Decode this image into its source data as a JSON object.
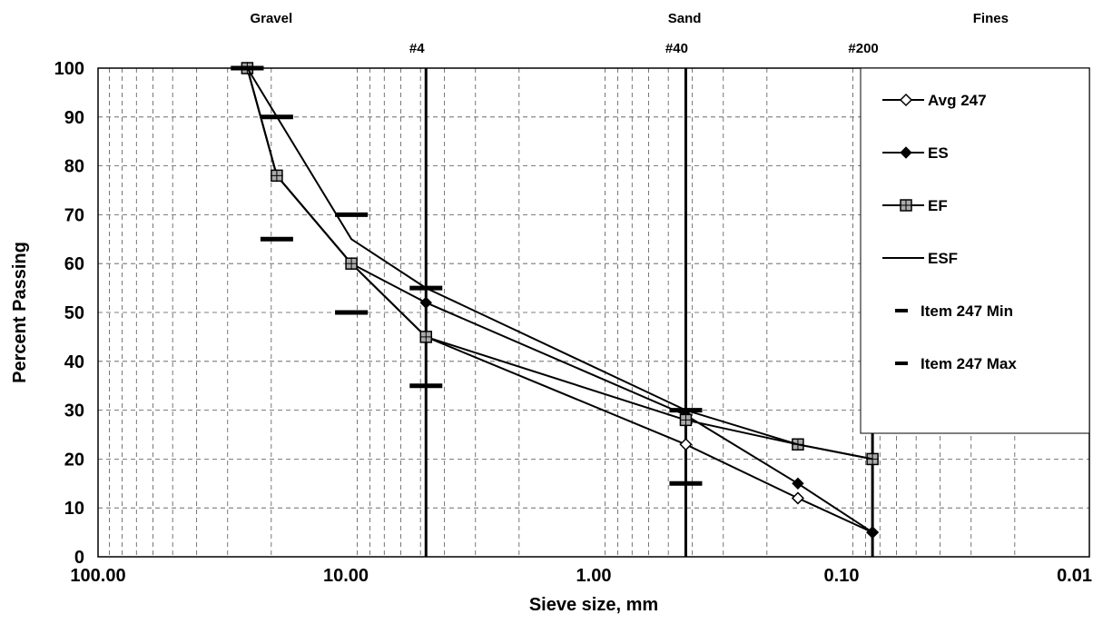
{
  "chart_data": {
    "type": "line",
    "x_scale": "log",
    "x_reversed": true,
    "xlabel": "Sieve size, mm",
    "ylabel": "Percent Passing",
    "xlim": [
      100,
      0.01
    ],
    "ylim": [
      0,
      100
    ],
    "x_ticks": [
      100,
      10,
      1,
      0.1,
      0.01
    ],
    "x_tick_labels": [
      "100.00",
      "10.00",
      "1.00",
      "0.10",
      "0.01"
    ],
    "y_ticks": [
      0,
      10,
      20,
      30,
      40,
      50,
      60,
      70,
      80,
      90,
      100
    ],
    "y_tick_labels": [
      "0",
      "10",
      "20",
      "30",
      "40",
      "50",
      "60",
      "70",
      "80",
      "90",
      "100"
    ],
    "grid": true,
    "legend_position": "right",
    "zones": [
      {
        "label": "Gravel",
        "x": 20
      },
      {
        "label": "Sand",
        "x": 0.43
      },
      {
        "label": "Fines",
        "x": 0.025
      }
    ],
    "sieves": [
      {
        "label": "#4",
        "x": 4.75
      },
      {
        "label": "#40",
        "x": 0.425
      },
      {
        "label": "#200",
        "x": 0.075
      }
    ],
    "series": [
      {
        "name": "Avg 247",
        "style": "line-open-diamond",
        "x": [
          25,
          19,
          9.5,
          4.75,
          0.425,
          0.15,
          0.075
        ],
        "y": [
          100,
          78,
          60,
          45,
          23,
          12,
          5
        ]
      },
      {
        "name": "ES",
        "style": "line-filled-diamond",
        "x": [
          25,
          19,
          9.5,
          4.75,
          0.425,
          0.15,
          0.075
        ],
        "y": [
          100,
          78,
          60,
          52,
          29,
          15,
          5
        ]
      },
      {
        "name": "EF",
        "style": "line-square",
        "x": [
          25,
          19,
          9.5,
          4.75,
          0.425,
          0.15,
          0.075
        ],
        "y": [
          100,
          78,
          60,
          45,
          28,
          23,
          20
        ]
      },
      {
        "name": "ESF",
        "style": "line",
        "x": [
          25,
          9.5,
          4.75,
          0.425,
          0.15,
          0.075
        ],
        "y": [
          100,
          65,
          55,
          30,
          23,
          20
        ]
      },
      {
        "name": "Item 247 Min",
        "style": "dash",
        "x": [
          25,
          19,
          9.5,
          4.75,
          0.425
        ],
        "y": [
          100,
          65,
          50,
          35,
          15
        ]
      },
      {
        "name": "Item 247 Max",
        "style": "dash",
        "x": [
          25,
          19,
          9.5,
          4.75,
          0.425
        ],
        "y": [
          100,
          90,
          70,
          55,
          30
        ]
      }
    ]
  }
}
